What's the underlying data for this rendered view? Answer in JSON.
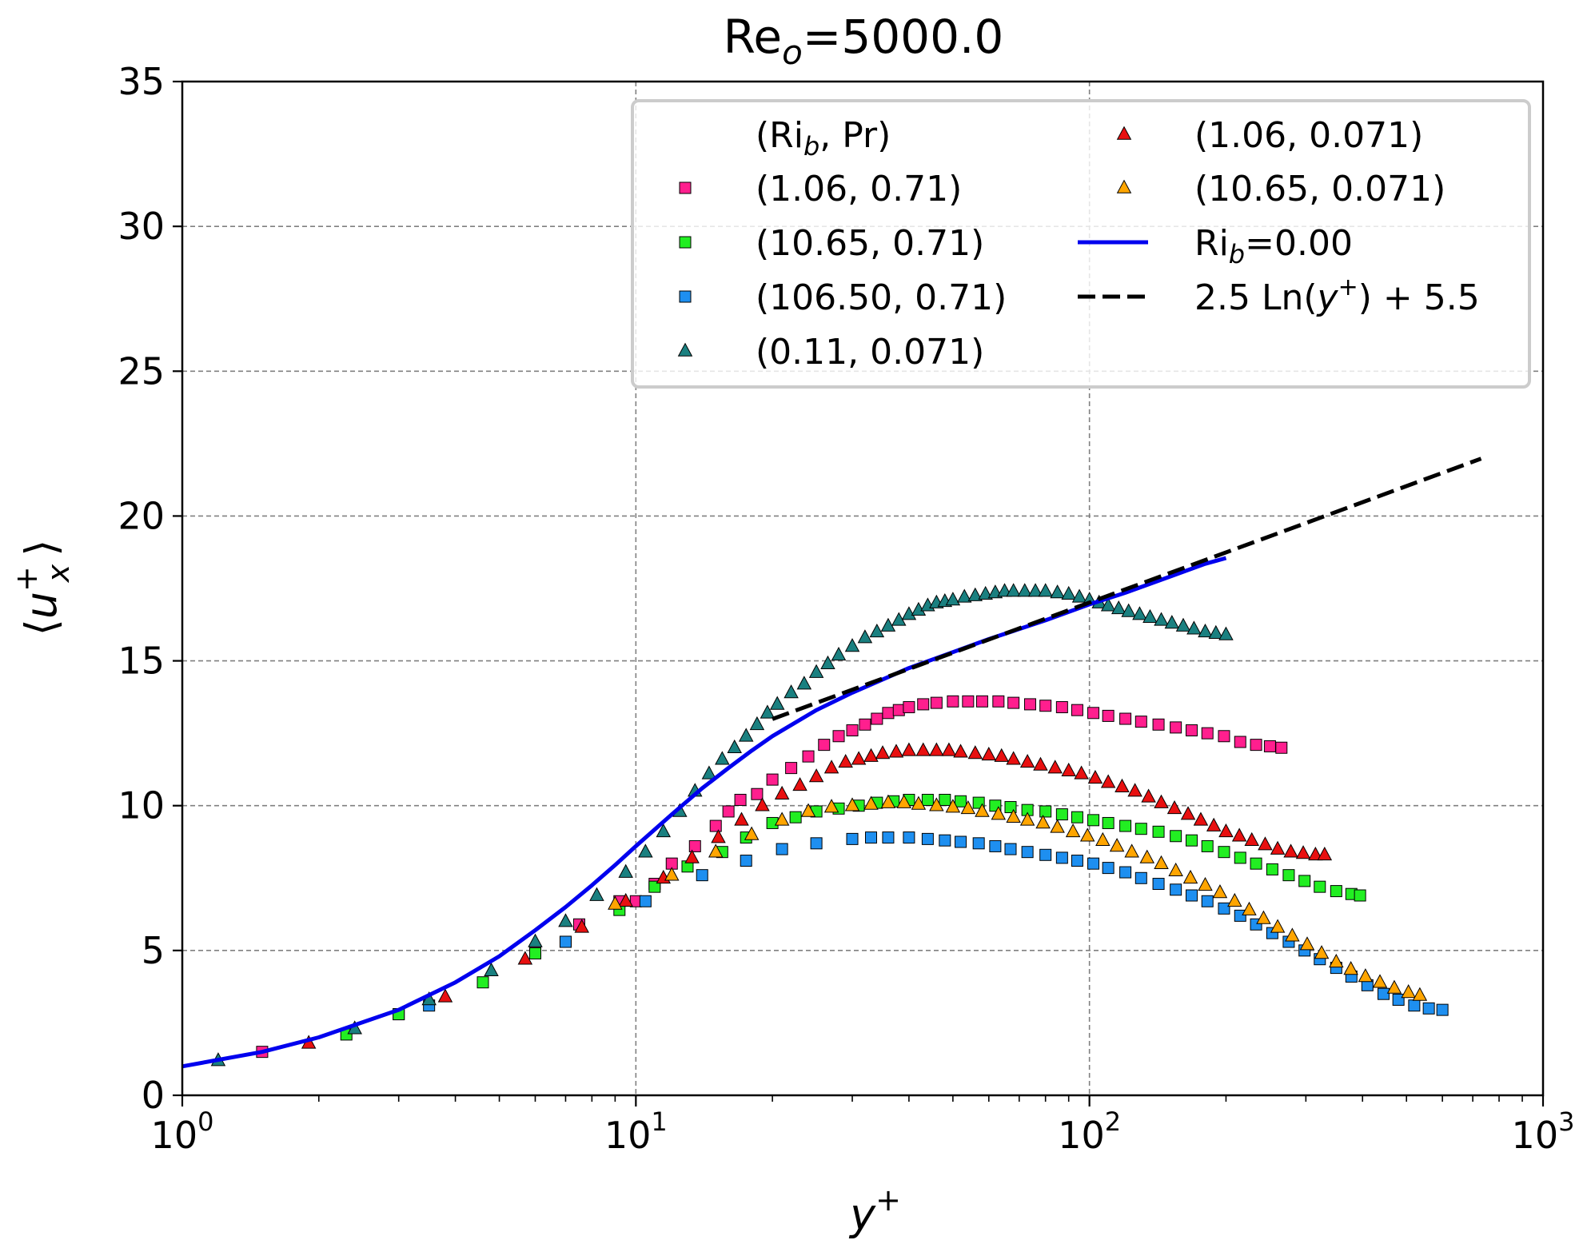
{
  "chart_data": {
    "type": "scatter",
    "title": {
      "base": "Re",
      "sub": "o",
      "rest": "=5000.0"
    },
    "xlabel": {
      "base": "y",
      "sup": "+"
    },
    "ylabel": {
      "open": "⟨",
      "base": "u",
      "sup": "+",
      "sub": "x",
      "close": "⟩"
    },
    "xscale": "log",
    "xlim": [
      1,
      1000
    ],
    "ylim": [
      0,
      35
    ],
    "x_ticks": [
      {
        "value": 1,
        "base": "10",
        "exp": "0"
      },
      {
        "value": 10,
        "base": "10",
        "exp": "1"
      },
      {
        "value": 100,
        "base": "10",
        "exp": "2"
      },
      {
        "value": 1000,
        "base": "10",
        "exp": "3"
      }
    ],
    "y_ticks": [
      "0",
      "5",
      "10",
      "15",
      "20",
      "25",
      "30",
      "35"
    ],
    "grid": true,
    "legend": {
      "placement": "top-right",
      "header": {
        "open": "(Ri",
        "sub": "b",
        "rest": ", Pr)"
      },
      "ncol": 2
    },
    "series": [
      {
        "name": "(1.06, 0.71)",
        "marker": "square",
        "color": "#ff1f8e",
        "x": [
          1.5,
          3.0,
          6.0,
          7.5,
          9.2,
          10.0,
          11.0,
          12.0,
          13.5,
          15.0,
          16.0,
          17.0,
          18.5,
          20.0,
          22.0,
          24.0,
          26.0,
          28.0,
          30.0,
          32.0,
          34.0,
          36.0,
          38.0,
          40.0,
          43.0,
          46.0,
          50.0,
          54.0,
          58.0,
          63.0,
          68.0,
          74.0,
          80.0,
          87.0,
          94.0,
          102.0,
          110.0,
          120.0,
          130.0,
          142.0,
          155.0,
          168.0,
          182.0,
          198.0,
          215.0,
          233.0,
          250.0,
          265.0
        ],
        "y": [
          1.5,
          2.8,
          5.0,
          5.9,
          6.7,
          6.7,
          7.3,
          8.0,
          8.6,
          9.3,
          9.8,
          10.2,
          10.4,
          10.9,
          11.3,
          11.7,
          12.1,
          12.4,
          12.6,
          12.8,
          13.0,
          13.2,
          13.3,
          13.4,
          13.5,
          13.55,
          13.6,
          13.6,
          13.6,
          13.6,
          13.55,
          13.5,
          13.45,
          13.4,
          13.3,
          13.2,
          13.1,
          13.0,
          12.9,
          12.8,
          12.7,
          12.6,
          12.5,
          12.4,
          12.2,
          12.1,
          12.05,
          12.0
        ]
      },
      {
        "name": "(10.65, 0.71)",
        "marker": "square",
        "color": "#22ee22",
        "x": [
          2.3,
          3.0,
          4.6,
          6.0,
          7.0,
          9.2,
          11.0,
          13.0,
          15.5,
          17.5,
          20.0,
          22.5,
          25.0,
          28.0,
          31.0,
          34.0,
          37.0,
          40.0,
          44.0,
          48.0,
          52.0,
          57.0,
          62.0,
          67.0,
          73.0,
          80.0,
          87.0,
          94.0,
          102.0,
          110.0,
          120.0,
          130.0,
          142.0,
          155.0,
          168.0,
          182.0,
          198.0,
          215.0,
          233.0,
          253.0,
          275.0,
          298.0,
          322.0,
          350.0,
          378.0,
          395.0
        ],
        "y": [
          2.1,
          2.8,
          3.9,
          4.9,
          5.3,
          6.4,
          7.2,
          7.9,
          8.4,
          8.9,
          9.4,
          9.6,
          9.8,
          9.9,
          10.0,
          10.1,
          10.15,
          10.2,
          10.2,
          10.2,
          10.15,
          10.1,
          10.0,
          9.95,
          9.85,
          9.8,
          9.7,
          9.6,
          9.5,
          9.4,
          9.3,
          9.2,
          9.1,
          8.95,
          8.8,
          8.6,
          8.4,
          8.2,
          8.0,
          7.8,
          7.6,
          7.4,
          7.2,
          7.05,
          6.95,
          6.9
        ]
      },
      {
        "name": "(106.50, 0.71)",
        "marker": "square",
        "color": "#1e8ff0",
        "x": [
          3.5,
          7.0,
          10.5,
          14.0,
          17.5,
          21.0,
          25.0,
          30.0,
          33.0,
          36.0,
          40.0,
          44.0,
          48.0,
          52.0,
          57.0,
          62.0,
          67.0,
          73.0,
          80.0,
          87.0,
          94.0,
          102.0,
          110.0,
          120.0,
          130.0,
          142.0,
          155.0,
          168.0,
          182.0,
          198.0,
          215.0,
          233.0,
          253.0,
          275.0,
          298.0,
          322.0,
          350.0,
          378.0,
          410.0,
          445.0,
          480.0,
          520.0,
          560.0,
          600.0
        ],
        "y": [
          3.1,
          5.3,
          6.7,
          7.6,
          8.1,
          8.5,
          8.7,
          8.85,
          8.9,
          8.9,
          8.9,
          8.85,
          8.8,
          8.75,
          8.7,
          8.6,
          8.5,
          8.4,
          8.3,
          8.2,
          8.1,
          8.0,
          7.85,
          7.7,
          7.5,
          7.3,
          7.1,
          6.9,
          6.7,
          6.45,
          6.2,
          5.9,
          5.6,
          5.3,
          5.0,
          4.7,
          4.4,
          4.1,
          3.8,
          3.5,
          3.3,
          3.1,
          3.0,
          2.95
        ]
      },
      {
        "name": "(0.11, 0.071)",
        "marker": "triangle",
        "color": "#1a8080",
        "x": [
          1.2,
          2.4,
          3.5,
          4.8,
          6.0,
          7.0,
          8.2,
          9.5,
          10.5,
          11.5,
          12.5,
          13.5,
          14.5,
          15.5,
          16.5,
          17.5,
          18.5,
          19.5,
          20.5,
          22.0,
          23.5,
          25.0,
          26.5,
          28.0,
          30.0,
          32.0,
          34.0,
          36.0,
          38.0,
          40.0,
          42.0,
          44.0,
          46.0,
          48.0,
          50.0,
          53.0,
          56.0,
          59.0,
          62.0,
          65.0,
          68.0,
          72.0,
          76.0,
          80.0,
          85.0,
          90.0,
          95.0,
          100.0,
          105.0,
          110.0,
          116.0,
          122.0,
          129.0,
          136.0,
          144.0,
          152.0,
          161.0,
          170.0,
          180.0,
          190.0,
          200.0
        ],
        "y": [
          1.2,
          2.3,
          3.3,
          4.3,
          5.3,
          6.0,
          6.9,
          7.7,
          8.4,
          9.1,
          9.8,
          10.5,
          11.1,
          11.6,
          12.0,
          12.4,
          12.8,
          13.2,
          13.5,
          13.9,
          14.2,
          14.6,
          14.9,
          15.2,
          15.5,
          15.8,
          16.0,
          16.2,
          16.4,
          16.6,
          16.75,
          16.9,
          17.0,
          17.05,
          17.1,
          17.2,
          17.25,
          17.3,
          17.35,
          17.4,
          17.4,
          17.4,
          17.4,
          17.4,
          17.35,
          17.3,
          17.2,
          17.1,
          17.0,
          16.9,
          16.8,
          16.7,
          16.6,
          16.5,
          16.4,
          16.3,
          16.2,
          16.1,
          16.0,
          15.95,
          15.9
        ]
      },
      {
        "name": "(1.06, 0.071)",
        "marker": "triangle",
        "color": "#e81010",
        "x": [
          1.9,
          3.8,
          5.7,
          7.6,
          9.5,
          11.5,
          13.3,
          15.2,
          17.1,
          19.0,
          21.0,
          23.0,
          25.0,
          27.0,
          29.0,
          31.0,
          33.0,
          35.0,
          37.5,
          40.0,
          43.0,
          46.0,
          49.0,
          52.0,
          56.0,
          60.0,
          64.0,
          68.0,
          73.0,
          78.0,
          84.0,
          90.0,
          96.0,
          103.0,
          110.0,
          118.0,
          126.0,
          135.0,
          144.0,
          154.0,
          165.0,
          176.0,
          188.0,
          200.0,
          214.0,
          228.0,
          244.0,
          260.0,
          278.0,
          296.0,
          315.0,
          330.0
        ],
        "y": [
          1.8,
          3.4,
          4.7,
          5.8,
          6.7,
          7.5,
          8.2,
          8.9,
          9.5,
          10.0,
          10.4,
          10.7,
          11.0,
          11.3,
          11.5,
          11.6,
          11.7,
          11.8,
          11.85,
          11.9,
          11.9,
          11.9,
          11.9,
          11.85,
          11.8,
          11.75,
          11.7,
          11.6,
          11.5,
          11.4,
          11.3,
          11.2,
          11.1,
          10.95,
          10.8,
          10.65,
          10.5,
          10.3,
          10.1,
          9.9,
          9.7,
          9.5,
          9.3,
          9.1,
          8.95,
          8.8,
          8.65,
          8.5,
          8.4,
          8.35,
          8.3,
          8.3
        ]
      },
      {
        "name": "(10.65, 0.071)",
        "marker": "triangle",
        "color": "#ffa500",
        "x": [
          9.0,
          12.0,
          15.0,
          18.0,
          21.0,
          24.0,
          27.0,
          30.0,
          33.0,
          36.0,
          39.0,
          42.0,
          46.0,
          50.0,
          54.0,
          58.0,
          63.0,
          68.0,
          73.0,
          79.0,
          85.0,
          92.0,
          99.0,
          107.0,
          115.0,
          124.0,
          134.0,
          144.0,
          155.0,
          167.0,
          180.0,
          194.0,
          209.0,
          225.0,
          242.0,
          260.0,
          280.0,
          302.0,
          325.0,
          350.0,
          377.0,
          406.0,
          437.0,
          470.0,
          505.0,
          535.0
        ],
        "y": [
          6.6,
          7.6,
          8.4,
          9.0,
          9.5,
          9.8,
          9.95,
          10.0,
          10.05,
          10.1,
          10.1,
          10.05,
          10.0,
          9.95,
          9.9,
          9.8,
          9.7,
          9.6,
          9.5,
          9.4,
          9.25,
          9.1,
          8.95,
          8.8,
          8.6,
          8.4,
          8.2,
          8.0,
          7.75,
          7.5,
          7.25,
          7.0,
          6.7,
          6.4,
          6.1,
          5.8,
          5.5,
          5.2,
          4.9,
          4.6,
          4.35,
          4.1,
          3.9,
          3.7,
          3.55,
          3.45
        ]
      },
      {
        "name": "Ri_b=0.00",
        "legend": {
          "base": "Ri",
          "sub": "b",
          "rest": "=0.00"
        },
        "style": "solid-line",
        "color": "#0000ee",
        "x": [
          1.0,
          1.5,
          2.0,
          3.0,
          4.0,
          5.0,
          6.0,
          7.0,
          8.0,
          9.0,
          10.0,
          12.0,
          14.0,
          16.0,
          18.0,
          20.0,
          25.0,
          30.0,
          40.0,
          50.0,
          60.0,
          80.0,
          100.0,
          120.0,
          150.0,
          180.0,
          200.0
        ],
        "y": [
          1.0,
          1.5,
          2.0,
          2.95,
          3.9,
          4.8,
          5.7,
          6.5,
          7.25,
          7.95,
          8.6,
          9.7,
          10.6,
          11.3,
          11.9,
          12.4,
          13.3,
          13.9,
          14.75,
          15.3,
          15.75,
          16.4,
          16.95,
          17.35,
          17.9,
          18.35,
          18.55
        ]
      },
      {
        "name": "2.5 Ln(y+) + 5.5",
        "legend": {
          "pre": "2.5 Ln(",
          "base": "y",
          "sup": "+",
          "post": ") + 5.5"
        },
        "style": "dashed-line",
        "color": "#000000",
        "x": [
          20.0,
          730.0
        ],
        "y": [
          12.99,
          21.98
        ]
      }
    ]
  }
}
